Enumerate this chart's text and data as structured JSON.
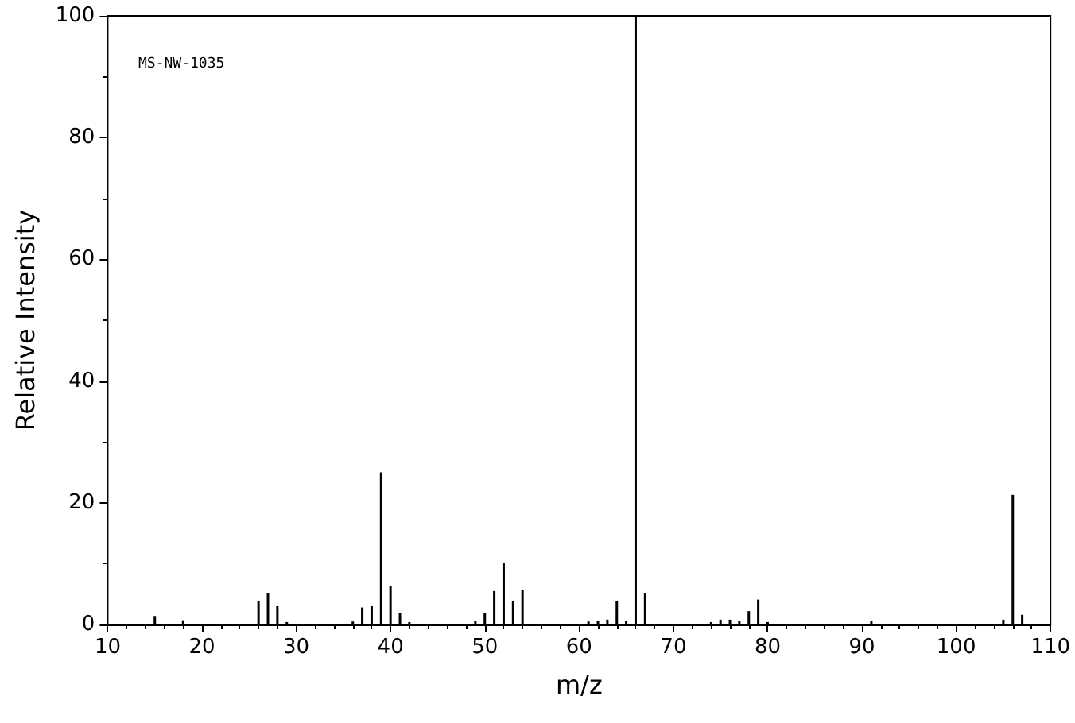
{
  "chart_data": {
    "type": "bar",
    "xlabel": "m/z",
    "ylabel": "Relative Intensity",
    "annotations": [
      "MS-NW-1035"
    ],
    "x": [
      15,
      18,
      26,
      27,
      28,
      29,
      36,
      37,
      38,
      39,
      40,
      41,
      42,
      49,
      50,
      51,
      52,
      53,
      54,
      61,
      62,
      63,
      64,
      65,
      66,
      67,
      74,
      75,
      76,
      77,
      78,
      79,
      80,
      91,
      105,
      106,
      107
    ],
    "values": [
      1.4,
      0.7,
      3.8,
      5.2,
      3.0,
      0.4,
      0.5,
      2.8,
      3.0,
      25,
      6.3,
      1.9,
      0.4,
      0.6,
      1.9,
      5.5,
      10.1,
      3.8,
      5.7,
      0.5,
      0.6,
      0.8,
      3.8,
      0.6,
      100,
      5.2,
      0.4,
      0.8,
      0.8,
      0.6,
      2.2,
      4.1,
      0.4,
      0.6,
      0.8,
      21.3,
      1.6
    ],
    "color": "#000000",
    "xlim": [
      10,
      110
    ],
    "xticks": [
      10,
      20,
      30,
      40,
      50,
      60,
      70,
      80,
      90,
      100,
      110
    ],
    "ylim": [
      0,
      100
    ],
    "yticks": [
      0,
      20,
      40,
      60,
      80,
      100
    ],
    "grid": false
  }
}
